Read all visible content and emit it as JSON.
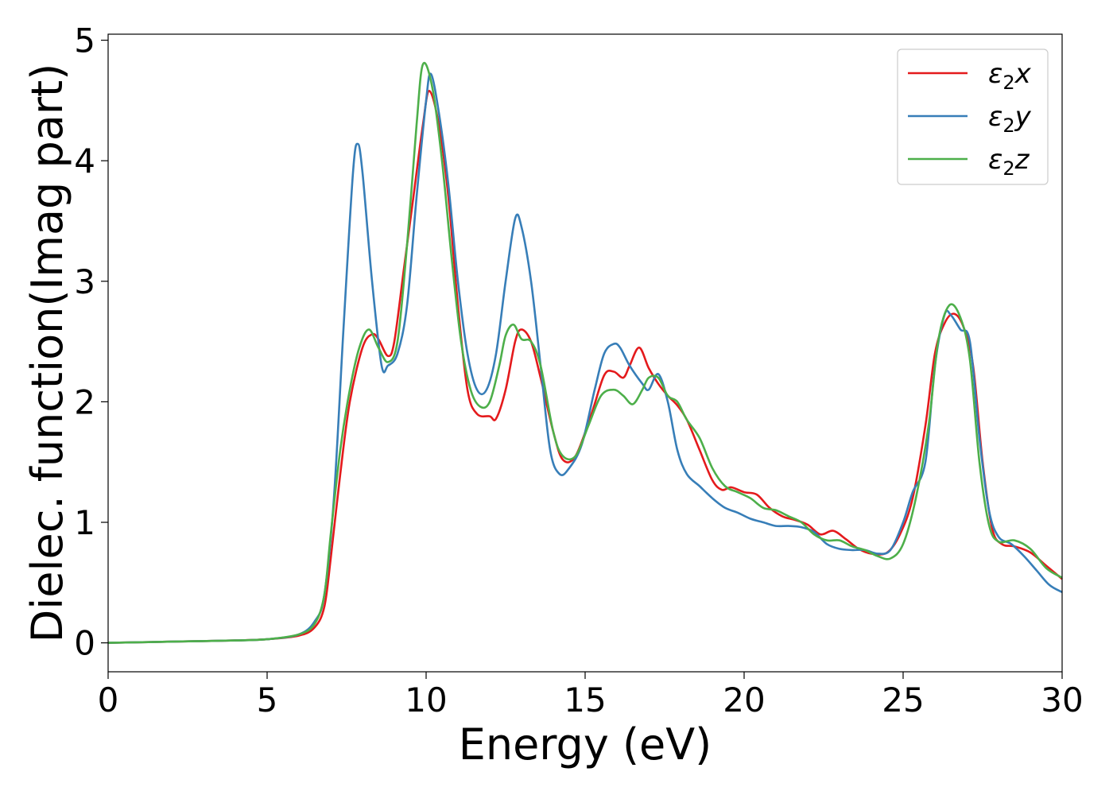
{
  "chart_data": {
    "type": "line",
    "xlabel": "Energy (eV)",
    "ylabel": "Dielec. function(Imag part)",
    "xlim": [
      0,
      30
    ],
    "ylim": [
      -0.24,
      5.05
    ],
    "xticks": [
      0,
      5,
      10,
      15,
      20,
      25,
      30
    ],
    "yticks": [
      0,
      1,
      2,
      3,
      4,
      5
    ],
    "grid": false,
    "legend_position": "top-right",
    "series": [
      {
        "name": "ε2x",
        "legend": {
          "base": "ε",
          "sub": "2",
          "var": "x"
        },
        "color": "#e41a1c",
        "points": [
          [
            0,
            0
          ],
          [
            2,
            0.01
          ],
          [
            4,
            0.02
          ],
          [
            5,
            0.03
          ],
          [
            6,
            0.06
          ],
          [
            6.5,
            0.13
          ],
          [
            6.8,
            0.3
          ],
          [
            7,
            0.7
          ],
          [
            7.3,
            1.4
          ],
          [
            7.6,
            2.0
          ],
          [
            8.0,
            2.45
          ],
          [
            8.3,
            2.56
          ],
          [
            8.5,
            2.52
          ],
          [
            8.8,
            2.38
          ],
          [
            9.0,
            2.5
          ],
          [
            9.3,
            3.1
          ],
          [
            9.6,
            3.7
          ],
          [
            9.9,
            4.3
          ],
          [
            10.1,
            4.58
          ],
          [
            10.4,
            4.3
          ],
          [
            10.7,
            3.7
          ],
          [
            11.0,
            2.8
          ],
          [
            11.3,
            2.1
          ],
          [
            11.6,
            1.9
          ],
          [
            12.0,
            1.88
          ],
          [
            12.2,
            1.86
          ],
          [
            12.5,
            2.1
          ],
          [
            12.8,
            2.5
          ],
          [
            13.0,
            2.6
          ],
          [
            13.3,
            2.5
          ],
          [
            13.6,
            2.2
          ],
          [
            14.0,
            1.75
          ],
          [
            14.3,
            1.52
          ],
          [
            14.7,
            1.55
          ],
          [
            15.2,
            1.9
          ],
          [
            15.6,
            2.22
          ],
          [
            15.9,
            2.25
          ],
          [
            16.2,
            2.2
          ],
          [
            16.4,
            2.3
          ],
          [
            16.7,
            2.45
          ],
          [
            17.0,
            2.28
          ],
          [
            17.3,
            2.15
          ],
          [
            17.6,
            2.05
          ],
          [
            17.9,
            1.97
          ],
          [
            18.2,
            1.85
          ],
          [
            18.6,
            1.6
          ],
          [
            19.0,
            1.35
          ],
          [
            19.3,
            1.27
          ],
          [
            19.6,
            1.29
          ],
          [
            20.0,
            1.25
          ],
          [
            20.4,
            1.23
          ],
          [
            20.8,
            1.12
          ],
          [
            21.2,
            1.05
          ],
          [
            21.6,
            1.02
          ],
          [
            22.0,
            0.98
          ],
          [
            22.4,
            0.9
          ],
          [
            22.8,
            0.93
          ],
          [
            23.2,
            0.86
          ],
          [
            23.6,
            0.78
          ],
          [
            24.0,
            0.74
          ],
          [
            24.5,
            0.75
          ],
          [
            24.9,
            0.9
          ],
          [
            25.3,
            1.2
          ],
          [
            25.7,
            1.8
          ],
          [
            26.0,
            2.4
          ],
          [
            26.3,
            2.65
          ],
          [
            26.6,
            2.73
          ],
          [
            26.9,
            2.62
          ],
          [
            27.2,
            2.3
          ],
          [
            27.5,
            1.5
          ],
          [
            27.8,
            0.95
          ],
          [
            28.1,
            0.82
          ],
          [
            28.5,
            0.8
          ],
          [
            29.0,
            0.75
          ],
          [
            29.5,
            0.64
          ],
          [
            30.0,
            0.53
          ]
        ]
      },
      {
        "name": "ε2y",
        "legend": {
          "base": "ε",
          "sub": "2",
          "var": "y"
        },
        "color": "#377eb8",
        "points": [
          [
            0,
            0
          ],
          [
            2,
            0.01
          ],
          [
            4,
            0.02
          ],
          [
            5,
            0.03
          ],
          [
            6,
            0.07
          ],
          [
            6.5,
            0.18
          ],
          [
            6.8,
            0.4
          ],
          [
            7.1,
            1.2
          ],
          [
            7.4,
            2.6
          ],
          [
            7.7,
            3.9
          ],
          [
            7.85,
            4.14
          ],
          [
            8.0,
            3.9
          ],
          [
            8.3,
            3.0
          ],
          [
            8.6,
            2.3
          ],
          [
            8.8,
            2.3
          ],
          [
            9.1,
            2.4
          ],
          [
            9.4,
            2.8
          ],
          [
            9.7,
            3.7
          ],
          [
            10.0,
            4.5
          ],
          [
            10.15,
            4.72
          ],
          [
            10.4,
            4.4
          ],
          [
            10.7,
            3.8
          ],
          [
            11.0,
            3.0
          ],
          [
            11.3,
            2.4
          ],
          [
            11.6,
            2.1
          ],
          [
            11.9,
            2.1
          ],
          [
            12.2,
            2.4
          ],
          [
            12.5,
            3.0
          ],
          [
            12.8,
            3.52
          ],
          [
            13.0,
            3.45
          ],
          [
            13.3,
            3.0
          ],
          [
            13.6,
            2.3
          ],
          [
            13.9,
            1.6
          ],
          [
            14.2,
            1.4
          ],
          [
            14.5,
            1.45
          ],
          [
            14.9,
            1.65
          ],
          [
            15.3,
            2.1
          ],
          [
            15.6,
            2.4
          ],
          [
            15.9,
            2.48
          ],
          [
            16.1,
            2.45
          ],
          [
            16.4,
            2.3
          ],
          [
            16.8,
            2.15
          ],
          [
            17.0,
            2.1
          ],
          [
            17.3,
            2.23
          ],
          [
            17.6,
            2.0
          ],
          [
            17.9,
            1.6
          ],
          [
            18.2,
            1.4
          ],
          [
            18.6,
            1.3
          ],
          [
            19.0,
            1.2
          ],
          [
            19.4,
            1.12
          ],
          [
            19.8,
            1.08
          ],
          [
            20.2,
            1.03
          ],
          [
            20.6,
            1.0
          ],
          [
            21.0,
            0.97
          ],
          [
            21.4,
            0.97
          ],
          [
            21.8,
            0.96
          ],
          [
            22.2,
            0.92
          ],
          [
            22.6,
            0.82
          ],
          [
            23.0,
            0.78
          ],
          [
            23.4,
            0.77
          ],
          [
            23.8,
            0.77
          ],
          [
            24.2,
            0.74
          ],
          [
            24.6,
            0.77
          ],
          [
            25.0,
            1.0
          ],
          [
            25.3,
            1.25
          ],
          [
            25.7,
            1.5
          ],
          [
            26.0,
            2.3
          ],
          [
            26.3,
            2.72
          ],
          [
            26.5,
            2.72
          ],
          [
            26.8,
            2.6
          ],
          [
            27.1,
            2.5
          ],
          [
            27.4,
            1.7
          ],
          [
            27.7,
            1.1
          ],
          [
            28.0,
            0.88
          ],
          [
            28.4,
            0.82
          ],
          [
            28.8,
            0.72
          ],
          [
            29.2,
            0.6
          ],
          [
            29.6,
            0.48
          ],
          [
            30.0,
            0.42
          ]
        ]
      },
      {
        "name": "ε2z",
        "legend": {
          "base": "ε",
          "sub": "2",
          "var": "z"
        },
        "color": "#4daf4a",
        "points": [
          [
            0,
            0
          ],
          [
            2,
            0.01
          ],
          [
            4,
            0.02
          ],
          [
            5,
            0.03
          ],
          [
            6,
            0.07
          ],
          [
            6.5,
            0.16
          ],
          [
            6.8,
            0.4
          ],
          [
            7.0,
            0.9
          ],
          [
            7.3,
            1.6
          ],
          [
            7.6,
            2.1
          ],
          [
            7.9,
            2.45
          ],
          [
            8.2,
            2.6
          ],
          [
            8.5,
            2.45
          ],
          [
            8.8,
            2.33
          ],
          [
            9.1,
            2.5
          ],
          [
            9.4,
            3.3
          ],
          [
            9.7,
            4.3
          ],
          [
            9.9,
            4.8
          ],
          [
            10.2,
            4.6
          ],
          [
            10.5,
            4.0
          ],
          [
            10.8,
            3.2
          ],
          [
            11.1,
            2.5
          ],
          [
            11.4,
            2.1
          ],
          [
            11.7,
            1.96
          ],
          [
            12.0,
            2.0
          ],
          [
            12.3,
            2.3
          ],
          [
            12.5,
            2.55
          ],
          [
            12.75,
            2.64
          ],
          [
            13.0,
            2.52
          ],
          [
            13.3,
            2.5
          ],
          [
            13.6,
            2.3
          ],
          [
            14.0,
            1.75
          ],
          [
            14.3,
            1.55
          ],
          [
            14.7,
            1.55
          ],
          [
            15.1,
            1.8
          ],
          [
            15.5,
            2.05
          ],
          [
            15.9,
            2.1
          ],
          [
            16.2,
            2.05
          ],
          [
            16.5,
            1.98
          ],
          [
            16.8,
            2.1
          ],
          [
            17.0,
            2.2
          ],
          [
            17.3,
            2.2
          ],
          [
            17.6,
            2.05
          ],
          [
            17.9,
            2.0
          ],
          [
            18.2,
            1.85
          ],
          [
            18.6,
            1.7
          ],
          [
            19.0,
            1.45
          ],
          [
            19.4,
            1.3
          ],
          [
            19.8,
            1.25
          ],
          [
            20.2,
            1.2
          ],
          [
            20.6,
            1.12
          ],
          [
            21.0,
            1.1
          ],
          [
            21.4,
            1.05
          ],
          [
            21.8,
            1.0
          ],
          [
            22.2,
            0.9
          ],
          [
            22.6,
            0.85
          ],
          [
            23.0,
            0.85
          ],
          [
            23.4,
            0.8
          ],
          [
            23.8,
            0.77
          ],
          [
            24.2,
            0.72
          ],
          [
            24.6,
            0.7
          ],
          [
            25.0,
            0.82
          ],
          [
            25.4,
            1.2
          ],
          [
            25.8,
            1.8
          ],
          [
            26.1,
            2.5
          ],
          [
            26.45,
            2.8
          ],
          [
            26.8,
            2.7
          ],
          [
            27.1,
            2.35
          ],
          [
            27.4,
            1.5
          ],
          [
            27.7,
            0.98
          ],
          [
            28.0,
            0.84
          ],
          [
            28.5,
            0.85
          ],
          [
            29.0,
            0.78
          ],
          [
            29.5,
            0.62
          ],
          [
            30.0,
            0.54
          ]
        ]
      }
    ]
  }
}
